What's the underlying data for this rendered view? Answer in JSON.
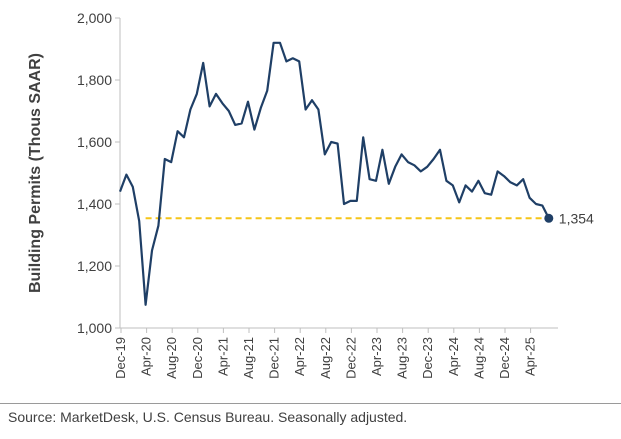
{
  "chart_data": {
    "type": "line",
    "ylabel": "Building Permits (Thous SAAR)",
    "xlabel": "",
    "ylim": [
      1000,
      2000
    ],
    "y_ticks": [
      1000,
      1200,
      1400,
      1600,
      1800,
      2000
    ],
    "y_tick_labels": [
      "1,000",
      "1,200",
      "1,400",
      "1,600",
      "1,800",
      "2,000"
    ],
    "x_tick_labels": [
      "Dec-19",
      "Apr-20",
      "Aug-20",
      "Dec-20",
      "Apr-21",
      "Aug-21",
      "Dec-21",
      "Apr-22",
      "Aug-22",
      "Dec-22",
      "Apr-23",
      "Aug-23",
      "Dec-23",
      "Apr-24",
      "Aug-24",
      "Dec-24",
      "Apr-25"
    ],
    "x_tick_every_months": 4,
    "series": [
      {
        "name": "Building Permits",
        "color": "#1f3f66",
        "start": "Dec-19",
        "values": [
          1440,
          1495,
          1455,
          1345,
          1075,
          1250,
          1330,
          1545,
          1535,
          1635,
          1615,
          1705,
          1755,
          1855,
          1715,
          1755,
          1725,
          1700,
          1655,
          1660,
          1730,
          1640,
          1710,
          1765,
          1920,
          1920,
          1860,
          1870,
          1860,
          1705,
          1735,
          1705,
          1560,
          1600,
          1595,
          1400,
          1410,
          1410,
          1615,
          1480,
          1475,
          1575,
          1465,
          1520,
          1560,
          1535,
          1525,
          1505,
          1520,
          1545,
          1575,
          1475,
          1460,
          1405,
          1460,
          1440,
          1475,
          1435,
          1430,
          1505,
          1490,
          1470,
          1460,
          1480,
          1420,
          1400,
          1395,
          1354
        ]
      }
    ],
    "reference_line": {
      "value": 1354,
      "color": "#f5c518",
      "style": "dashed",
      "from": "Apr-20"
    },
    "end_marker": {
      "value": 1354,
      "label": "1,354"
    }
  },
  "footer": {
    "source": "Source: MarketDesk, U.S. Census Bureau. Seasonally adjusted."
  }
}
